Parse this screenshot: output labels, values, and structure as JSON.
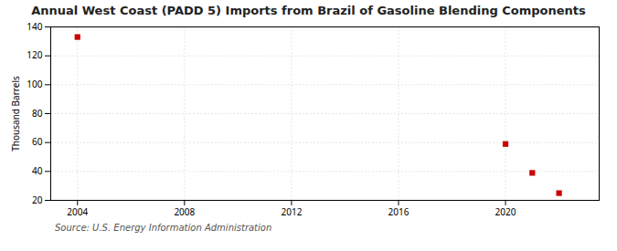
{
  "chart_data": {
    "type": "scatter",
    "title": "Annual West Coast (PADD 5) Imports from Brazil of Gasoline Blending Components",
    "ylabel": "Thousand Barrels",
    "source": "Source: U.S. Energy Information Administration",
    "x": [
      2004,
      2020,
      2021,
      2022
    ],
    "values": [
      133,
      59,
      39,
      25
    ],
    "color": "#cc0000",
    "marker": "square",
    "xlim": [
      2003.0,
      2023.5
    ],
    "xticks": [
      2004,
      2008,
      2012,
      2016,
      2020
    ],
    "ylim": [
      20,
      140
    ],
    "yticks": [
      20,
      40,
      60,
      80,
      100,
      120,
      140
    ],
    "grid": true
  }
}
